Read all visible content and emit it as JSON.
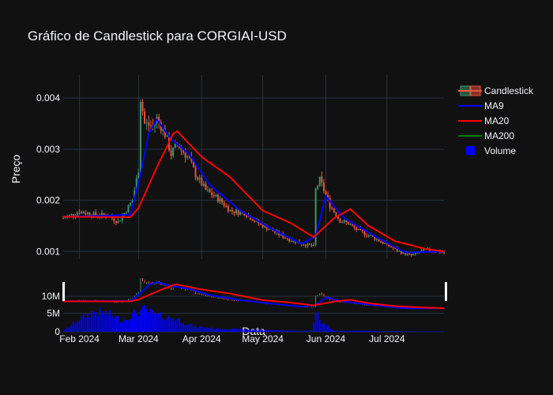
{
  "chart_data": {
    "type": "candlestick",
    "title": "Gráfico de Candlestick para CORGIAI-USD",
    "ylabel": "Preço",
    "xlabel": "Data",
    "ylim": [
      0.00085,
      0.00445
    ],
    "yticks": [
      {
        "value": 0.001,
        "label": "0.001"
      },
      {
        "value": 0.002,
        "label": "0.002"
      },
      {
        "value": 0.003,
        "label": "0.003"
      },
      {
        "value": 0.004,
        "label": "0.004"
      }
    ],
    "x_range": [
      "2024-01-24",
      "2024-07-29"
    ],
    "xticks": [
      {
        "date": "2024-02-01",
        "label": "Feb 2024"
      },
      {
        "date": "2024-03-01",
        "label": "Mar 2024"
      },
      {
        "date": "2024-04-01",
        "label": "Apr 2024"
      },
      {
        "date": "2024-05-01",
        "label": "May 2024"
      },
      {
        "date": "2024-06-01",
        "label": "Jun 2024"
      },
      {
        "date": "2024-07-01",
        "label": "Jul 2024"
      }
    ],
    "volume_axis": {
      "ylim": [
        0,
        15000000
      ],
      "yticks": [
        {
          "value": 0,
          "label": "0"
        },
        {
          "value": 5000000,
          "label": "5M"
        },
        {
          "value": 10000000,
          "label": "10M"
        }
      ]
    },
    "price_anchors": [
      {
        "date": "2024-01-24",
        "price": 0.00165
      },
      {
        "date": "2024-02-01",
        "price": 0.00178
      },
      {
        "date": "2024-02-08",
        "price": 0.00172
      },
      {
        "date": "2024-02-15",
        "price": 0.0017
      },
      {
        "date": "2024-02-20",
        "price": 0.00158
      },
      {
        "date": "2024-02-23",
        "price": 0.00175
      },
      {
        "date": "2024-02-27",
        "price": 0.002
      },
      {
        "date": "2024-03-01",
        "price": 0.0026
      },
      {
        "date": "2024-03-02",
        "price": 0.004
      },
      {
        "date": "2024-03-04",
        "price": 0.0035
      },
      {
        "date": "2024-03-08",
        "price": 0.00345
      },
      {
        "date": "2024-03-10",
        "price": 0.0036
      },
      {
        "date": "2024-03-14",
        "price": 0.0033
      },
      {
        "date": "2024-03-17",
        "price": 0.0029
      },
      {
        "date": "2024-03-20",
        "price": 0.0031
      },
      {
        "date": "2024-03-26",
        "price": 0.0028
      },
      {
        "date": "2024-03-29",
        "price": 0.0025
      },
      {
        "date": "2024-04-03",
        "price": 0.0022
      },
      {
        "date": "2024-04-10",
        "price": 0.002
      },
      {
        "date": "2024-04-15",
        "price": 0.0018
      },
      {
        "date": "2024-04-22",
        "price": 0.00175
      },
      {
        "date": "2024-04-29",
        "price": 0.00155
      },
      {
        "date": "2024-05-06",
        "price": 0.0014
      },
      {
        "date": "2024-05-13",
        "price": 0.00125
      },
      {
        "date": "2024-05-20",
        "price": 0.00115
      },
      {
        "date": "2024-05-26",
        "price": 0.0011
      },
      {
        "date": "2024-05-27",
        "price": 0.0022
      },
      {
        "date": "2024-05-29",
        "price": 0.0024
      },
      {
        "date": "2024-06-03",
        "price": 0.0019
      },
      {
        "date": "2024-06-08",
        "price": 0.0016
      },
      {
        "date": "2024-06-12",
        "price": 0.00155
      },
      {
        "date": "2024-06-17",
        "price": 0.0014
      },
      {
        "date": "2024-06-23",
        "price": 0.0013
      },
      {
        "date": "2024-06-30",
        "price": 0.00115
      },
      {
        "date": "2024-07-07",
        "price": 0.001
      },
      {
        "date": "2024-07-13",
        "price": 0.00092
      },
      {
        "date": "2024-07-20",
        "price": 0.00103
      },
      {
        "date": "2024-07-29",
        "price": 0.00098
      }
    ],
    "ma9": [
      {
        "date": "2024-01-24",
        "price": 0.00168
      },
      {
        "date": "2024-02-15",
        "price": 0.0017
      },
      {
        "date": "2024-02-26",
        "price": 0.00172
      },
      {
        "date": "2024-03-02",
        "price": 0.0025
      },
      {
        "date": "2024-03-06",
        "price": 0.0033
      },
      {
        "date": "2024-03-10",
        "price": 0.00358
      },
      {
        "date": "2024-03-17",
        "price": 0.0032
      },
      {
        "date": "2024-03-26",
        "price": 0.0029
      },
      {
        "date": "2024-04-05",
        "price": 0.0023
      },
      {
        "date": "2024-04-20",
        "price": 0.0018
      },
      {
        "date": "2024-05-05",
        "price": 0.00145
      },
      {
        "date": "2024-05-20",
        "price": 0.00115
      },
      {
        "date": "2024-05-27",
        "price": 0.0013
      },
      {
        "date": "2024-06-01",
        "price": 0.00208
      },
      {
        "date": "2024-06-10",
        "price": 0.00165
      },
      {
        "date": "2024-06-25",
        "price": 0.0013
      },
      {
        "date": "2024-07-10",
        "price": 0.00098
      },
      {
        "date": "2024-07-29",
        "price": 0.001
      }
    ],
    "ma20": [
      {
        "date": "2024-01-24",
        "price": 0.00168
      },
      {
        "date": "2024-02-26",
        "price": 0.00167
      },
      {
        "date": "2024-03-01",
        "price": 0.00185
      },
      {
        "date": "2024-03-10",
        "price": 0.00265
      },
      {
        "date": "2024-03-18",
        "price": 0.0033
      },
      {
        "date": "2024-03-20",
        "price": 0.00335
      },
      {
        "date": "2024-04-01",
        "price": 0.00285
      },
      {
        "date": "2024-04-15",
        "price": 0.00245
      },
      {
        "date": "2024-05-01",
        "price": 0.0018
      },
      {
        "date": "2024-05-15",
        "price": 0.00155
      },
      {
        "date": "2024-05-26",
        "price": 0.00128
      },
      {
        "date": "2024-06-05",
        "price": 0.00165
      },
      {
        "date": "2024-06-13",
        "price": 0.00183
      },
      {
        "date": "2024-06-22",
        "price": 0.0015
      },
      {
        "date": "2024-07-05",
        "price": 0.0012
      },
      {
        "date": "2024-07-20",
        "price": 0.00105
      },
      {
        "date": "2024-07-29",
        "price": 0.001
      }
    ],
    "volume_anchors": [
      {
        "date": "2024-01-24",
        "value": 200000
      },
      {
        "date": "2024-02-01",
        "value": 3500000
      },
      {
        "date": "2024-02-08",
        "value": 5500000
      },
      {
        "date": "2024-02-15",
        "value": 5000000
      },
      {
        "date": "2024-02-22",
        "value": 3000000
      },
      {
        "date": "2024-02-28",
        "value": 5000000
      },
      {
        "date": "2024-03-04",
        "value": 6000000
      },
      {
        "date": "2024-03-10",
        "value": 4500000
      },
      {
        "date": "2024-03-20",
        "value": 3500000
      },
      {
        "date": "2024-03-28",
        "value": 1500000
      },
      {
        "date": "2024-04-10",
        "value": 800000
      },
      {
        "date": "2024-05-01",
        "value": 500000
      },
      {
        "date": "2024-05-25",
        "value": 300000
      },
      {
        "date": "2024-05-27",
        "value": 5500000
      },
      {
        "date": "2024-05-30",
        "value": 2500000
      },
      {
        "date": "2024-06-05",
        "value": 300000
      },
      {
        "date": "2024-07-29",
        "value": 100000
      }
    ],
    "legend": [
      {
        "key": "candlestick",
        "label": "Candlestick",
        "color": "#ef553b"
      },
      {
        "key": "ma9",
        "label": "MA9",
        "color": "#0000ff"
      },
      {
        "key": "ma20",
        "label": "MA20",
        "color": "#ff0000"
      },
      {
        "key": "ma200",
        "label": "MA200",
        "color": "#008000"
      },
      {
        "key": "volume",
        "label": "Volume",
        "color": "#0000ff"
      }
    ],
    "colors": {
      "up": "#3d9970",
      "down": "#ef553b",
      "background": "#111111",
      "grid": "#283442"
    },
    "legend_position": "top-right",
    "grid": true
  }
}
